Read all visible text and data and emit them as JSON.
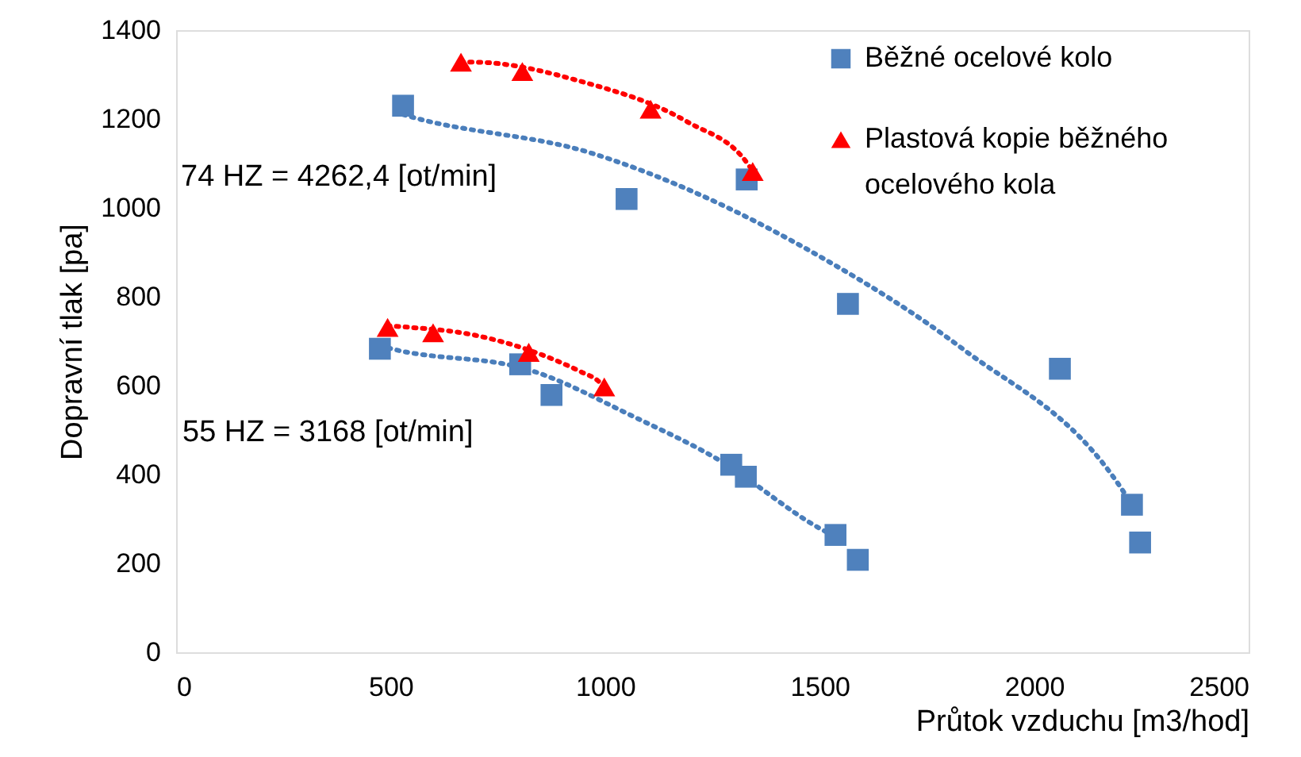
{
  "chart_data": {
    "type": "scatter",
    "xlabel": "Průtok vzduchu [m3/hod]",
    "ylabel": "Dopravní tlak [pa]",
    "xlim": [
      0,
      2500
    ],
    "xticks": [
      0,
      500,
      1000,
      1500,
      2000,
      2500
    ],
    "ylim": [
      0,
      1400
    ],
    "yticks": [
      0,
      200,
      400,
      600,
      800,
      1000,
      1200,
      1400
    ],
    "grid": false,
    "legend": "top right",
    "annotations": [
      "74 HZ = 4262,4 [ot/min]",
      "55 HZ = 3168 [ot/min]"
    ],
    "series": [
      {
        "type": "line",
        "color": "#4a7ebb",
        "line_style": "dotted",
        "marker": "none",
        "x": [
          529,
          551,
          969,
          1500,
          1833,
          2203,
          2228
        ],
        "values": [
          1210,
          1204,
          1123,
          891,
          683,
          369,
          332
        ]
      },
      {
        "type": "line",
        "color": "#4a7ebb",
        "line_style": "dotted",
        "marker": "none",
        "x": [
          475,
          502,
          821,
          1069,
          1265,
          1500,
          1525
        ],
        "values": [
          690,
          683,
          636,
          529,
          433,
          279,
          266
        ]
      },
      {
        "type": "line",
        "color": "#ff0000",
        "line_style": "dotted",
        "marker": "none",
        "x": [
          664,
          692,
          946,
          1191,
          1334,
          1344
        ],
        "values": [
          1328,
          1328,
          1284,
          1194,
          1097,
          1082
        ]
      },
      {
        "type": "line",
        "color": "#ff0000",
        "line_style": "dotted",
        "marker": "none",
        "x": [
          493,
          520,
          699,
          946,
          982,
          998
        ],
        "values": [
          735,
          733,
          713,
          630,
          612,
          597
        ]
      },
      {
        "name": "Běžné ocelové kolo",
        "color": "#4f81bd",
        "marker": "square",
        "x": [
          529,
          1050,
          1330,
          1566,
          2060,
          2228,
          2247,
          475,
          802,
          875,
          1294,
          1328,
          1537,
          1589
        ],
        "values": [
          1230,
          1020,
          1064,
          784,
          638,
          332,
          247,
          683,
          648,
          579,
          422,
          395,
          264,
          208
        ]
      },
      {
        "name": "Plastová kopie běžného ocelového kola",
        "color": "#ff0000",
        "marker": "triangle",
        "x": [
          664,
          807,
          1106,
          1344,
          493,
          599,
          822,
          998
        ],
        "values": [
          1328,
          1307,
          1222,
          1082,
          731,
          719,
          675,
          597
        ]
      }
    ]
  }
}
